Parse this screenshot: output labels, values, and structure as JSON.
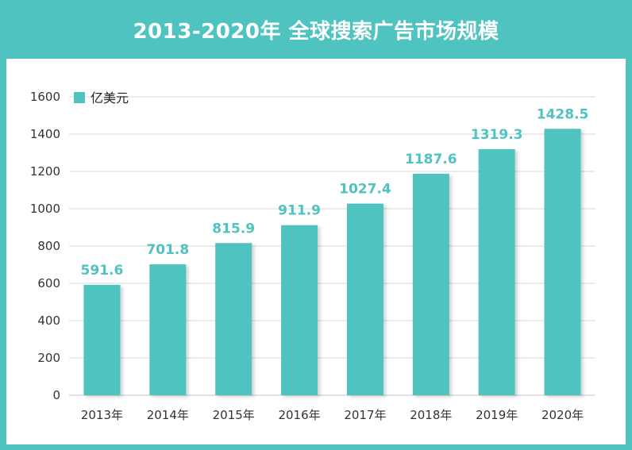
{
  "title": "2013-2020年 全球搜索广告市场规模",
  "colors": {
    "accent": "#4fc3c0",
    "grid": "#d9d9d9",
    "text": "#333333"
  },
  "chart_data": {
    "type": "bar",
    "title": "2013-2020年 全球搜索广告市场规模",
    "categories": [
      "2013年",
      "2014年",
      "2015年",
      "2016年",
      "2017年",
      "2018年",
      "2019年",
      "2020年"
    ],
    "series": [
      {
        "name": "亿美元",
        "values": [
          591.6,
          701.8,
          815.9,
          911.9,
          1027.4,
          1187.6,
          1319.3,
          1428.5
        ],
        "labels": [
          "591.6",
          "701.8",
          "815.9",
          "911.9",
          "1027.4",
          "1187.6",
          "1319.3",
          "1428.5"
        ]
      }
    ],
    "ylim": [
      0,
      1600
    ],
    "yticks": [
      0,
      200,
      400,
      600,
      800,
      1000,
      1200,
      1400,
      1600
    ],
    "grid": true,
    "legend": "top-left"
  }
}
